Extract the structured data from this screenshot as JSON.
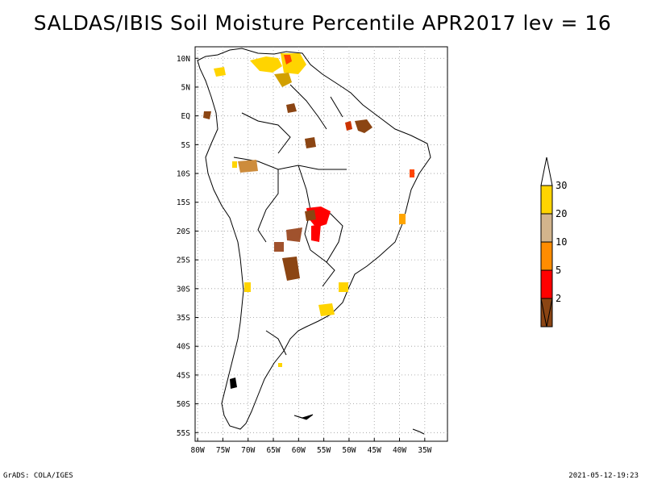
{
  "title": "SALDAS/IBIS Soil Moisture Percentile APR2017 lev = 16",
  "map": {
    "lon_range": [
      -80,
      -30
    ],
    "lat_range": [
      -56,
      12
    ],
    "lat_ticks": [
      "10N",
      "5N",
      "EQ",
      "5S",
      "10S",
      "15S",
      "20S",
      "25S",
      "30S",
      "35S",
      "40S",
      "45S",
      "50S",
      "55S"
    ],
    "lon_ticks": [
      "80W",
      "75W",
      "70W",
      "65W",
      "60W",
      "55W",
      "50W",
      "45W",
      "40W",
      "35W"
    ],
    "gridlines": true
  },
  "legend": {
    "labels": [
      "30",
      "20",
      "10",
      "5",
      "2"
    ],
    "colors": [
      "#ffd400",
      "#d2b48c",
      "#ff8c00",
      "#ff0000",
      "#8b4513"
    ],
    "tip_top_color": "#ffffff",
    "tip_bottom_color": "#8b4513"
  },
  "footer": {
    "left": "GrADS: COLA/IGES",
    "right": "2021-05-12-19:23"
  }
}
